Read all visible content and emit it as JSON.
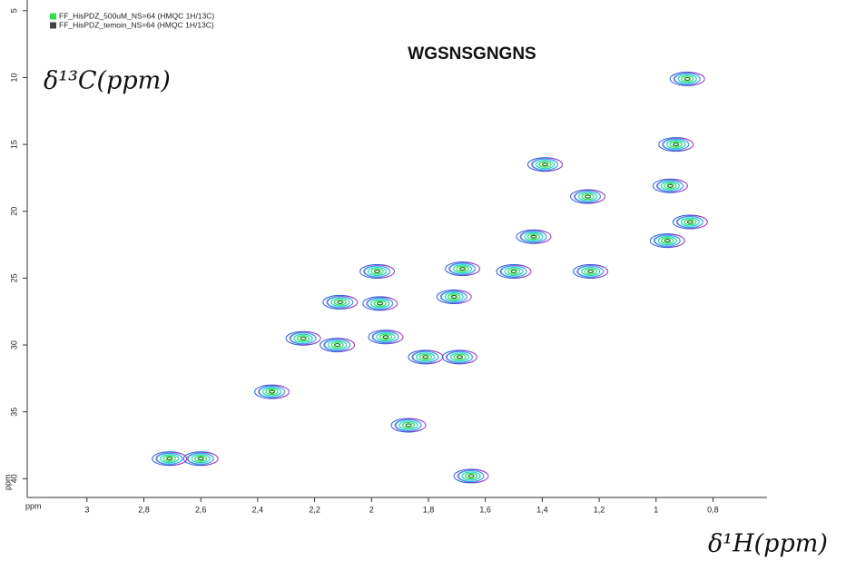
{
  "chart_data": {
    "type": "scatter",
    "title": "WGSNSGNGNS",
    "x_label": "δ¹H(ppm)",
    "y_label": "δ¹³C(ppm)",
    "x_unit": "ppm",
    "y_unit": "ppm",
    "xlim": [
      3.21,
      0.61
    ],
    "ylim": [
      4.2,
      41.4
    ],
    "xticks": [
      3,
      {
        "value": 2.8,
        "label": "2,8"
      },
      {
        "value": 2.6,
        "label": "2,6"
      },
      {
        "value": 2.4,
        "label": "2,4"
      },
      {
        "value": 2.2,
        "label": "2,2"
      },
      2,
      {
        "value": 1.8,
        "label": "1,8"
      },
      {
        "value": 1.6,
        "label": "1,6"
      },
      {
        "value": 1.4,
        "label": "1,4"
      },
      {
        "value": 1.2,
        "label": "1,2"
      },
      1,
      {
        "value": 0.8,
        "label": "0,8"
      }
    ],
    "yticks": [
      5,
      10,
      15,
      20,
      25,
      30,
      35,
      40
    ],
    "series": [
      {
        "name": "FF_HisPDZ_500uM_NS=64 (HMQC 1H/13C)",
        "color": "#33e04a",
        "x": [
          0.89,
          0.93,
          1.39,
          0.95,
          1.24,
          0.88,
          0.96,
          1.43,
          1.23,
          1.68,
          1.5,
          1.98,
          1.71,
          2.11,
          1.97,
          2.24,
          2.12,
          1.95,
          1.81,
          1.69,
          2.35,
          1.87,
          1.65,
          2.71,
          2.6
        ],
        "values": [
          10.1,
          15.0,
          16.5,
          18.1,
          18.9,
          20.8,
          22.2,
          21.9,
          24.5,
          24.3,
          24.5,
          24.5,
          26.4,
          26.8,
          26.9,
          29.5,
          30.0,
          29.4,
          30.9,
          30.9,
          33.5,
          36.0,
          39.8,
          38.5,
          38.5
        ]
      },
      {
        "name": "FF_HisPDZ_temoin_NS=64 (HMQC 1H/13C)",
        "color": "#444444",
        "x": [
          0.89,
          0.93,
          1.39,
          0.95,
          1.24,
          0.88,
          0.96,
          1.43,
          1.23,
          1.68,
          1.5,
          1.98,
          1.71,
          2.11,
          1.97,
          2.24,
          2.12,
          1.95,
          1.81,
          1.69,
          2.35,
          1.87,
          1.65,
          2.71,
          2.6
        ],
        "values": [
          10.1,
          15.0,
          16.5,
          18.1,
          18.9,
          20.8,
          22.2,
          21.9,
          24.5,
          24.3,
          24.5,
          24.5,
          26.4,
          26.8,
          26.9,
          29.5,
          30.0,
          29.4,
          30.9,
          30.9,
          33.5,
          36.0,
          39.8,
          38.5,
          38.5
        ]
      }
    ]
  }
}
